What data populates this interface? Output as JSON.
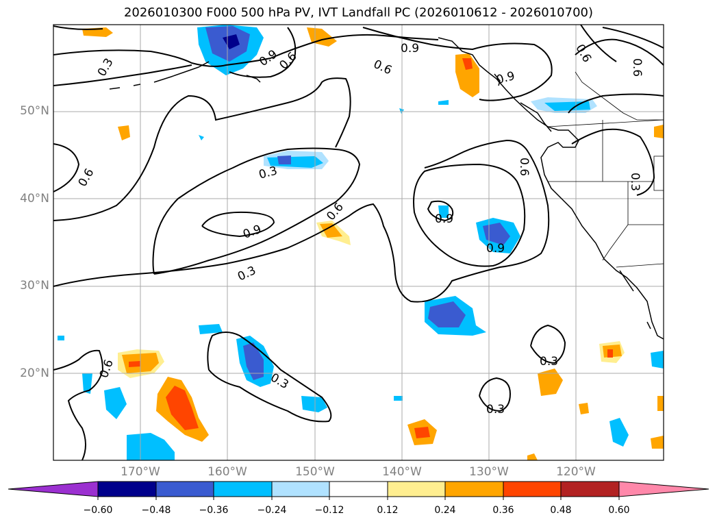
{
  "title": "2026010300 F000 500 hPa PV, IVT Landfall PC (2026010612 - 2026010700)",
  "lat_labels": [
    "50°N",
    "40°N",
    "30°N",
    "20°N"
  ],
  "lon_labels": [
    "170°W",
    "160°W",
    "150°W",
    "140°W",
    "130°W",
    "120°W"
  ],
  "colorbar": {
    "ticks": [
      "−0.60",
      "−0.48",
      "−0.36",
      "−0.24",
      "−0.12",
      "0.12",
      "0.24",
      "0.36",
      "0.48",
      "0.60"
    ],
    "colors": [
      "#9b30d0",
      "#00008b",
      "#3a5bd0",
      "#00bfff",
      "#b0e2ff",
      "#ffffff",
      "#ffee90",
      "#ffa500",
      "#ff4500",
      "#b22222",
      "#ff88aa"
    ]
  },
  "contour_labels": [
    "0.3",
    "0.6",
    "0.9"
  ]
}
